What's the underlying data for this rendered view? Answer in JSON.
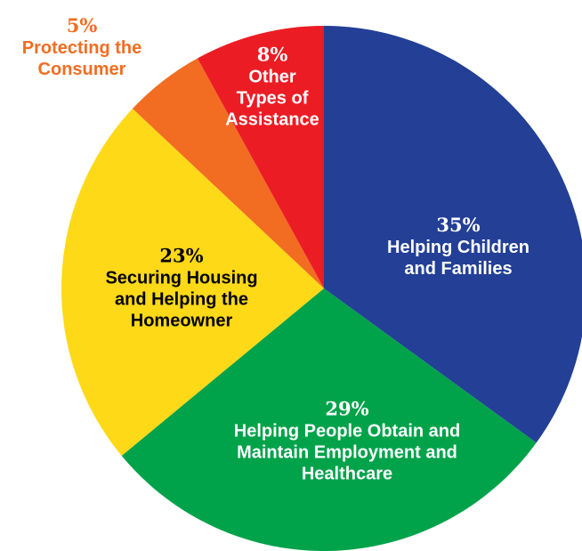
{
  "chart_data": {
    "type": "pie",
    "slices": [
      {
        "label": "Helping Children and Families",
        "lines": [
          "Helping Children",
          "and Families"
        ],
        "percent_label": "35%",
        "value": 35,
        "color": "#233f96",
        "text_color": "white"
      },
      {
        "label": "Helping People Obtain and Maintain Employment and Healthcare",
        "lines": [
          "Helping People Obtain and",
          "Maintain Employment and",
          "Healthcare"
        ],
        "percent_label": "29%",
        "value": 29,
        "color": "#00a24a",
        "text_color": "white"
      },
      {
        "label": "Securing Housing and Helping the Homeowner",
        "lines": [
          "Securing Housing",
          "and Helping the",
          "Homeowner"
        ],
        "percent_label": "23%",
        "value": 23,
        "color": "#fed918",
        "text_color": "black"
      },
      {
        "label": "Protecting the Consumer",
        "lines": [
          "Protecting the",
          "Consumer"
        ],
        "percent_label": "5%",
        "value": 5,
        "color": "#f26d21",
        "text_color": "orange"
      },
      {
        "label": "Other Types of Assistance",
        "lines": [
          "Other",
          "Types of",
          "Assistance"
        ],
        "percent_label": "8%",
        "value": 8,
        "color": "#ec1c24",
        "text_color": "white"
      }
    ]
  }
}
